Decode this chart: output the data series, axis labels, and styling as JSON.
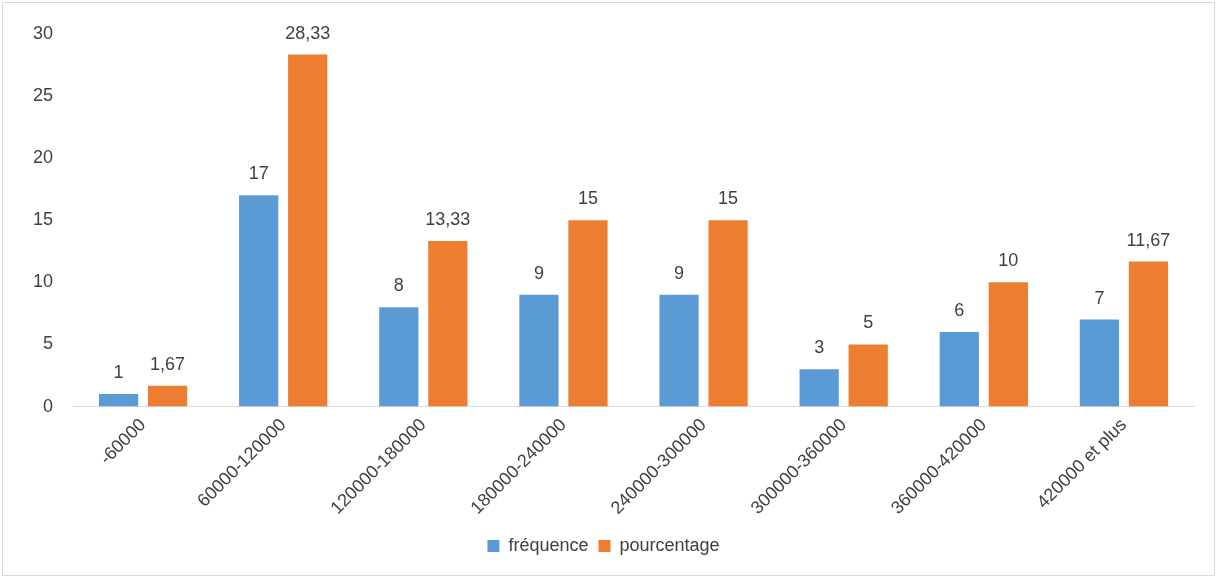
{
  "chart_data": {
    "type": "bar",
    "categories": [
      "-60000",
      "60000-120000",
      "120000-180000",
      "180000-240000",
      "240000-300000",
      "300000-360000",
      "360000-420000",
      "420000 et plus"
    ],
    "series": [
      {
        "name": "fréquence",
        "color": "#5b9bd5",
        "values": [
          1,
          17,
          8,
          9,
          9,
          3,
          6,
          7
        ],
        "value_labels": [
          "1",
          "17",
          "8",
          "9",
          "9",
          "3",
          "6",
          "7"
        ]
      },
      {
        "name": "pourcentage",
        "color": "#ed7d31",
        "values": [
          1.67,
          28.33,
          13.33,
          15,
          15,
          5,
          10,
          11.67
        ],
        "value_labels": [
          "1,67",
          "28,33",
          "13,33",
          "15",
          "15",
          "5",
          "10",
          "11,67"
        ]
      }
    ],
    "ylim": [
      0,
      30
    ],
    "yticks": [
      0,
      5,
      10,
      15,
      20,
      25,
      30
    ],
    "grid": false,
    "legend": "bottom"
  }
}
